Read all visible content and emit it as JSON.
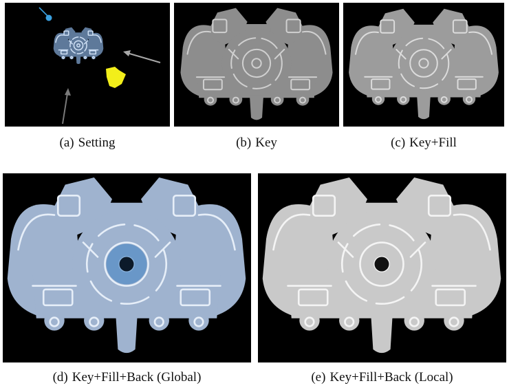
{
  "figure": {
    "panels": [
      {
        "label": "(a)",
        "caption": "Setting"
      },
      {
        "label": "(b)",
        "caption": "Key"
      },
      {
        "label": "(c)",
        "caption": "Key+Fill"
      },
      {
        "label": "(d)",
        "caption": "Key+Fill+Back (Global)"
      },
      {
        "label": "(e)",
        "caption": "Key+Fill+Back (Local)"
      }
    ],
    "colors": {
      "background": "#000000",
      "part_gray": "#9a9a9a",
      "part_blue_tint": "#aebfd8",
      "part_light": "#d6d6d6",
      "fill_light": "#ffff00",
      "key_light": "#3aa0e0",
      "arrow": "#a8a8a8"
    }
  }
}
